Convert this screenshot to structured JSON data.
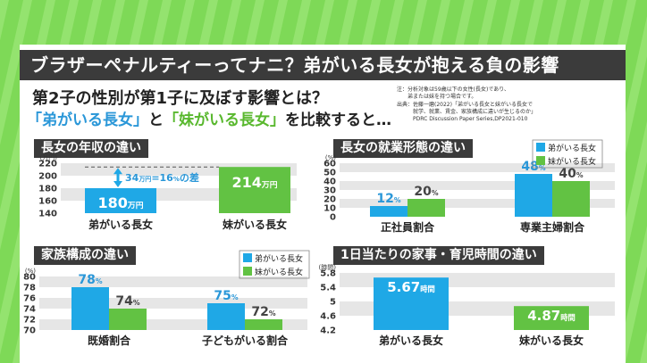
{
  "title": "ブラザーペナルティーってナニ？弟がいる長女が抱える負の影響",
  "subtitle": "第2子の性別が第1子に及ぼす影響とは？",
  "compare": {
    "q1": "「弟がいる長女」",
    "mid": "と",
    "q2": "「妹がいる長女」",
    "end": "を比較すると…"
  },
  "notes": [
    "注：分析対象は59歳以下の女性(長女)であり、",
    "　　弟または妹を持つ場合です。",
    "出典：佐藤一磨(2022)「弟がいる長女と妹がいる長女で",
    "　　　就学、就業、賃金、家族構成に違いが生じるのか」",
    "　　　PDRC Discussion Paper Series,DP2021-010"
  ],
  "colors": {
    "blue": "#1fa8e6",
    "green": "#62c243",
    "header": "#3b3b3b",
    "background": "#7ed957"
  },
  "chart_data": [
    {
      "type": "bar",
      "title": "長女の年収の違い",
      "unit_label": "(万円)",
      "categories": [
        "弟がいる長女",
        "妹がいる長女"
      ],
      "values": [
        180,
        214
      ],
      "value_labels": [
        "180",
        "214"
      ],
      "value_unit": "万円",
      "colors": [
        "#1fa8e6",
        "#62c243"
      ],
      "ylim": [
        140,
        220
      ],
      "yticks": [
        "140",
        "160",
        "180",
        "200",
        "220"
      ],
      "annotation": {
        "pre": "34",
        "unit1": "万円",
        "mid": "=16",
        "unit2": "%",
        "post": "の差"
      }
    },
    {
      "type": "bar",
      "title": "長女の就業形態の違い",
      "unit_label": "(%)",
      "categories": [
        "正社員割合",
        "専業主婦割合"
      ],
      "series": [
        {
          "name": "弟がいる長女",
          "values": [
            12,
            48
          ]
        },
        {
          "name": "妹がいる長女",
          "values": [
            20,
            40
          ]
        }
      ],
      "ylim": [
        0,
        60
      ],
      "yticks": [
        "0",
        "10",
        "20",
        "30",
        "40",
        "50",
        "60"
      ],
      "value_unit": "%",
      "legend": "top-right"
    },
    {
      "type": "bar",
      "title": "家族構成の違い",
      "unit_label": "(%)",
      "categories": [
        "既婚割合",
        "子どもがいる割合"
      ],
      "series": [
        {
          "name": "弟がいる長女",
          "values": [
            78,
            75
          ]
        },
        {
          "name": "妹がいる長女",
          "values": [
            74,
            72
          ]
        }
      ],
      "ylim": [
        70,
        80
      ],
      "yticks": [
        "70",
        "72",
        "74",
        "76",
        "78",
        "80"
      ],
      "value_unit": "%",
      "legend": "top-right"
    },
    {
      "type": "bar",
      "title": "1日当たりの家事・育児時間の違い",
      "unit_label": "(時間)",
      "categories": [
        "弟がいる長女",
        "妹がいる長女"
      ],
      "values": [
        5.67,
        4.87
      ],
      "value_labels": [
        "5.67",
        "4.87"
      ],
      "value_unit": "時間",
      "colors": [
        "#1fa8e6",
        "#62c243"
      ],
      "ylim": [
        4.2,
        5.8
      ],
      "yticks": [
        "4.2",
        "4.6",
        "5",
        "5.4",
        "5.8"
      ]
    }
  ]
}
